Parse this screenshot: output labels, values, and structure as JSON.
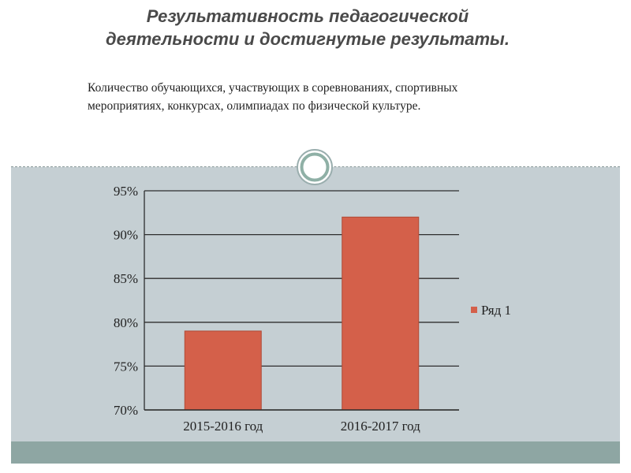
{
  "slide": {
    "title_line1": "Результативность педагогической",
    "title_line2": "деятельности и достигнутые результаты.",
    "subtitle_line1": "Количество обучающихся, участвующих в соревнованиях, спортивных",
    "subtitle_line2": "мероприятиях, конкурсах, олимпиадах по физической культуре."
  },
  "colors": {
    "bar": "#d4604a",
    "bottom_panel": "#c5cfd3",
    "footer": "#8ea6a3"
  },
  "chart_data": {
    "type": "bar",
    "categories": [
      "2015-2016 год",
      "2016-2017 год"
    ],
    "series": [
      {
        "name": "Ряд 1",
        "values": [
          79,
          92
        ]
      }
    ],
    "ylim": [
      70,
      95
    ],
    "yticks": [
      70,
      75,
      80,
      85,
      90,
      95
    ],
    "ytick_labels": [
      "70%",
      "75%",
      "80%",
      "85%",
      "90%",
      "95%"
    ],
    "grid": true,
    "legend": "right",
    "title": "",
    "xlabel": "",
    "ylabel": ""
  }
}
